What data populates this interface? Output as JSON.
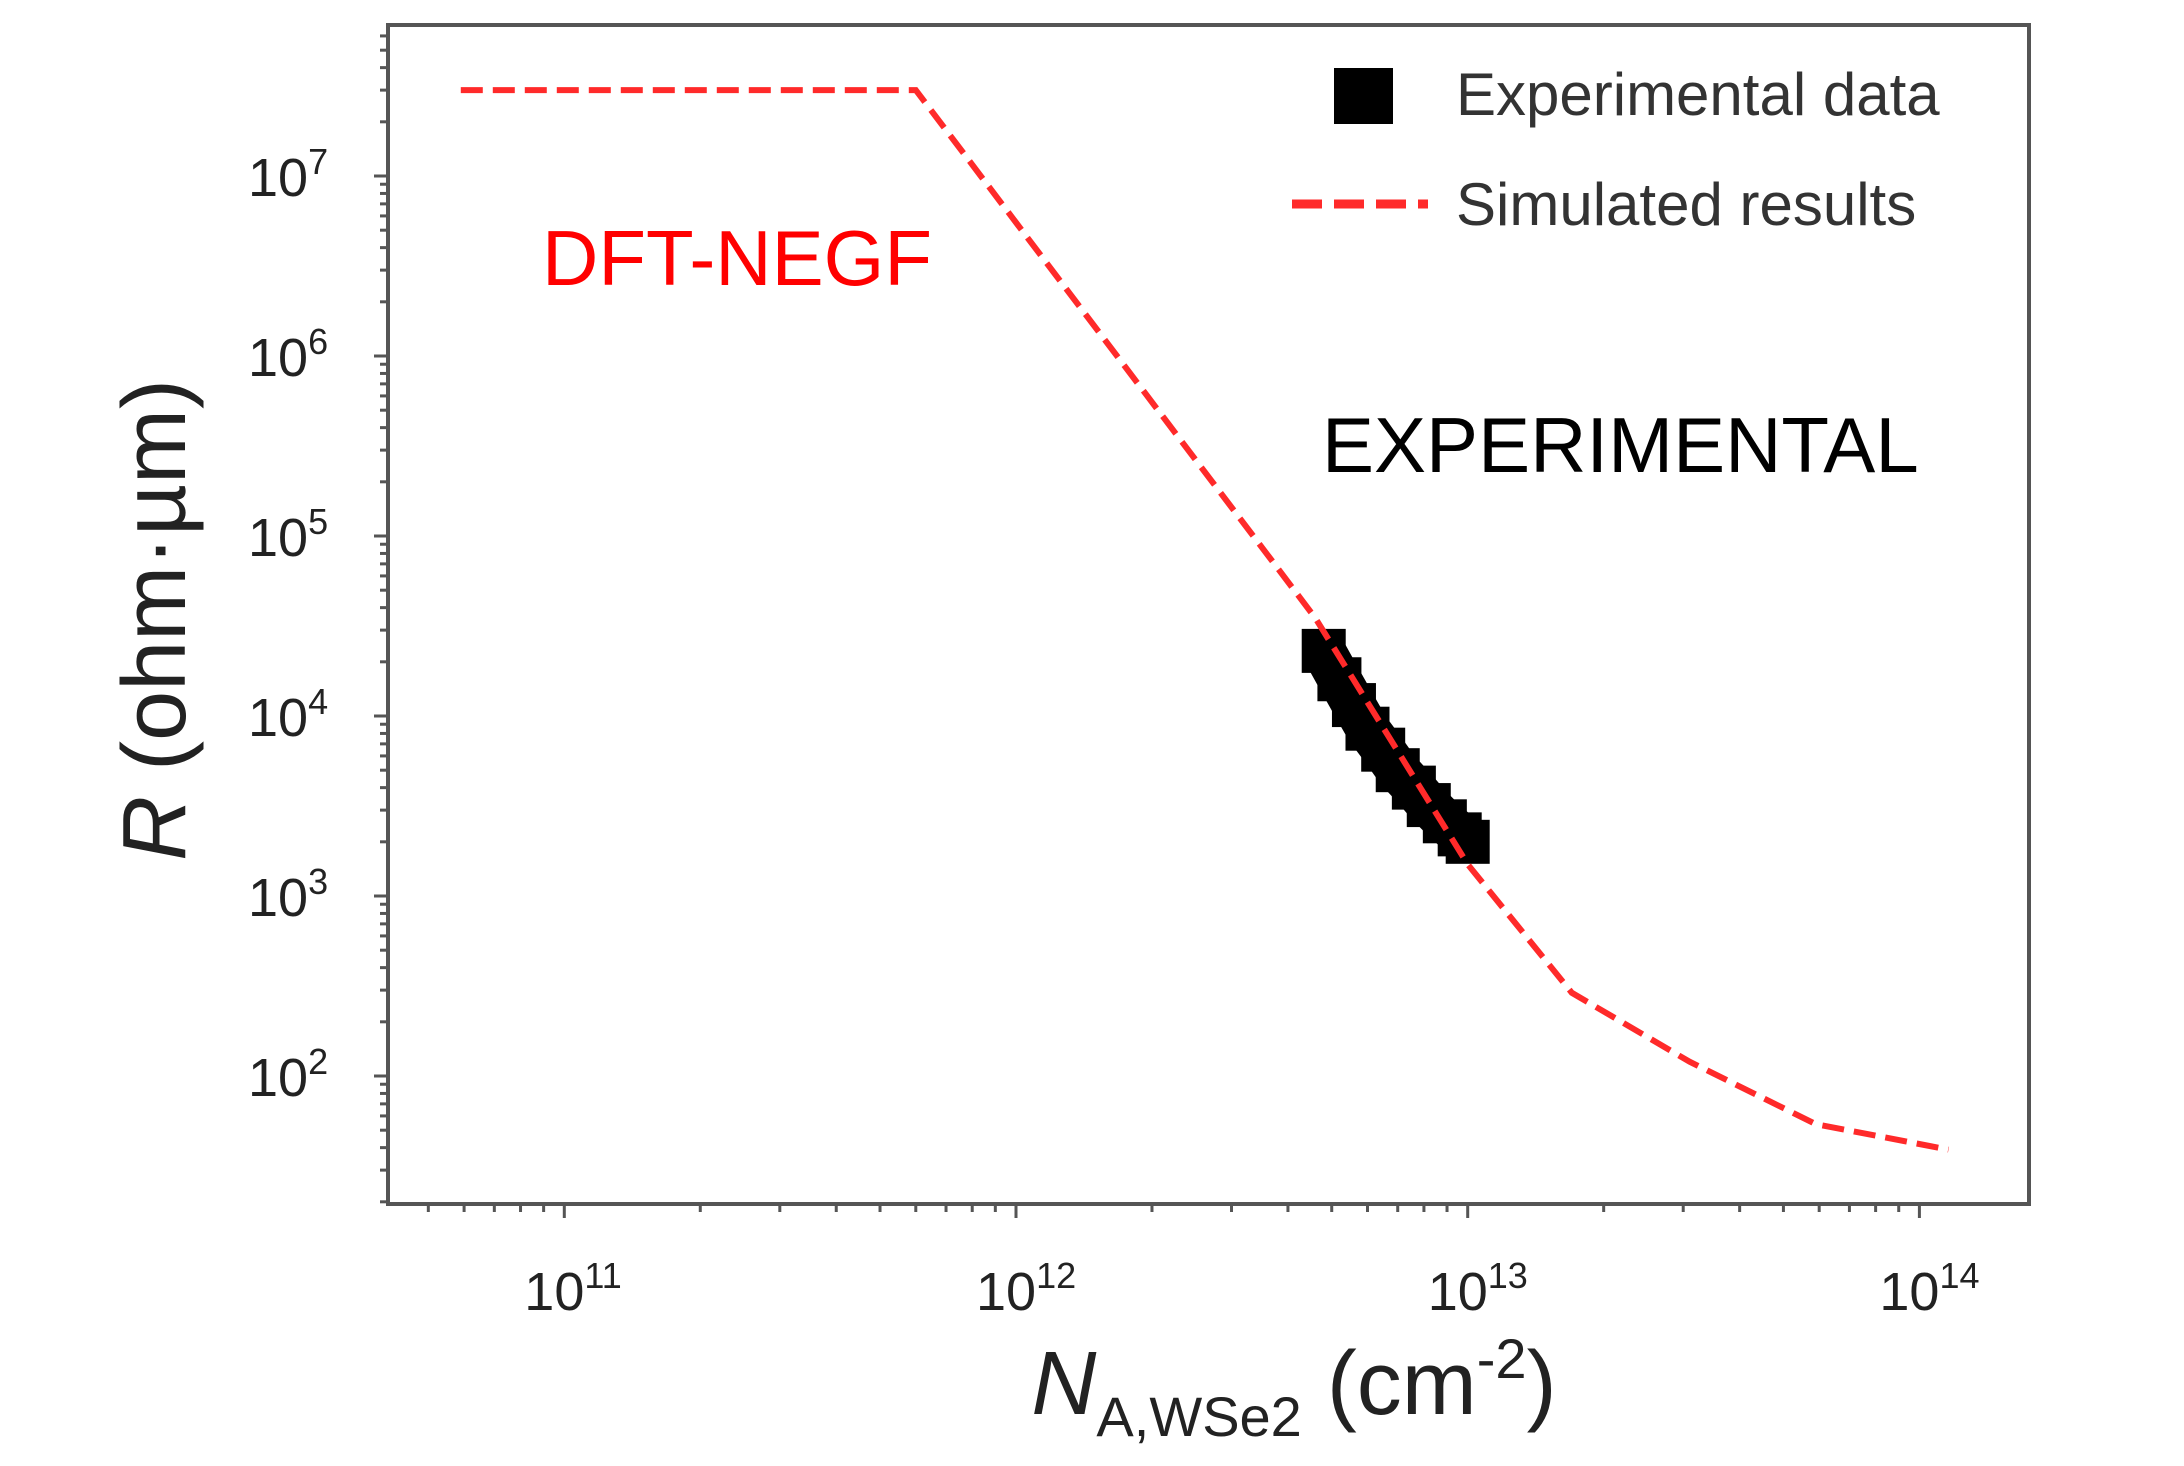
{
  "chart_data": {
    "type": "line",
    "title": "",
    "xlabel": {
      "main": "N",
      "sub": "A,WSe2",
      "unit": " (cm",
      "unit_sup": "-2",
      "unit_close": ")"
    },
    "ylabel": {
      "italic": "R",
      "rest": " (ohm·µm)"
    },
    "x_scale": "log",
    "y_scale": "log",
    "xlim": [
      40000000000.0,
      200000000000000.0
    ],
    "ylim": [
      20,
      60000000.0
    ],
    "x_ticks": [
      {
        "base": "10",
        "exp": "11",
        "value": 100000000000.0
      },
      {
        "base": "10",
        "exp": "12",
        "value": 1000000000000.0
      },
      {
        "base": "10",
        "exp": "13",
        "value": 10000000000000.0
      },
      {
        "base": "10",
        "exp": "14",
        "value": 100000000000000.0
      }
    ],
    "y_ticks": [
      {
        "base": "10",
        "exp": "2",
        "value": 100.0
      },
      {
        "base": "10",
        "exp": "3",
        "value": 1000.0
      },
      {
        "base": "10",
        "exp": "4",
        "value": 10000.0
      },
      {
        "base": "10",
        "exp": "5",
        "value": 100000.0
      },
      {
        "base": "10",
        "exp": "6",
        "value": 1000000.0
      },
      {
        "base": "10",
        "exp": "7",
        "value": 10000000.0
      }
    ],
    "grid": false,
    "legend_placement": "top-right",
    "series": [
      {
        "name": "Experimental data",
        "style": "square-markers",
        "color": "#000000",
        "x": [
          4800000000000.0,
          5200000000000.0,
          5600000000000.0,
          6000000000000.0,
          6500000000000.0,
          7000000000000.0,
          7600000000000.0,
          8200000000000.0,
          8900000000000.0,
          9600000000000.0,
          10000000000000.0
        ],
        "y": [
          23000.0,
          16000.0,
          11500.0,
          8500.0,
          6500.0,
          5000.0,
          4000.0,
          3200.0,
          2600.0,
          2200.0,
          2000.0
        ]
      },
      {
        "name": "Simulated results",
        "style": "dashed",
        "color": "#ff2a2a",
        "x": [
          59000000000.0,
          600000000000.0,
          4600000000000.0,
          10000000000000.0,
          17000000000000.0,
          31000000000000.0,
          59000000000000.0,
          116000000000000.0
        ],
        "y": [
          30000000.0,
          30000000.0,
          35000.0,
          1500.0,
          290.0,
          120.0,
          54.0,
          39.0
        ]
      }
    ],
    "annotations": [
      {
        "text": "DFT-NEGF",
        "color": "#ff0000"
      },
      {
        "text": "EXPERIMENTAL",
        "color": "#000000"
      }
    ]
  }
}
